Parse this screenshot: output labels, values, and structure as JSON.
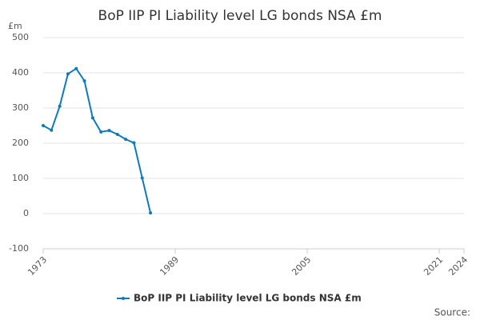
{
  "chart_data": {
    "type": "line",
    "title": "BoP IIP PI Liability level LG bonds NSA £m",
    "y_axis_label": "£m",
    "source": "Source:",
    "x": [
      1973,
      1974,
      1975,
      1976,
      1977,
      1978,
      1979,
      1980,
      1981,
      1982,
      1983,
      1984,
      1985,
      1986
    ],
    "series": [
      {
        "name": "BoP IIP PI Liability level LG bonds NSA £m",
        "color": "#0f7ab8",
        "values": [
          250,
          237,
          305,
          397,
          412,
          377,
          272,
          232,
          236,
          225,
          211,
          201,
          101,
          2
        ]
      }
    ],
    "xlim": [
      1973,
      2024
    ],
    "xticks": [
      1973,
      1989,
      2005,
      2021,
      2024
    ],
    "ylim": [
      -100,
      500
    ],
    "yticks": [
      -100,
      0,
      100,
      200,
      300,
      400,
      500
    ],
    "grid": true
  }
}
